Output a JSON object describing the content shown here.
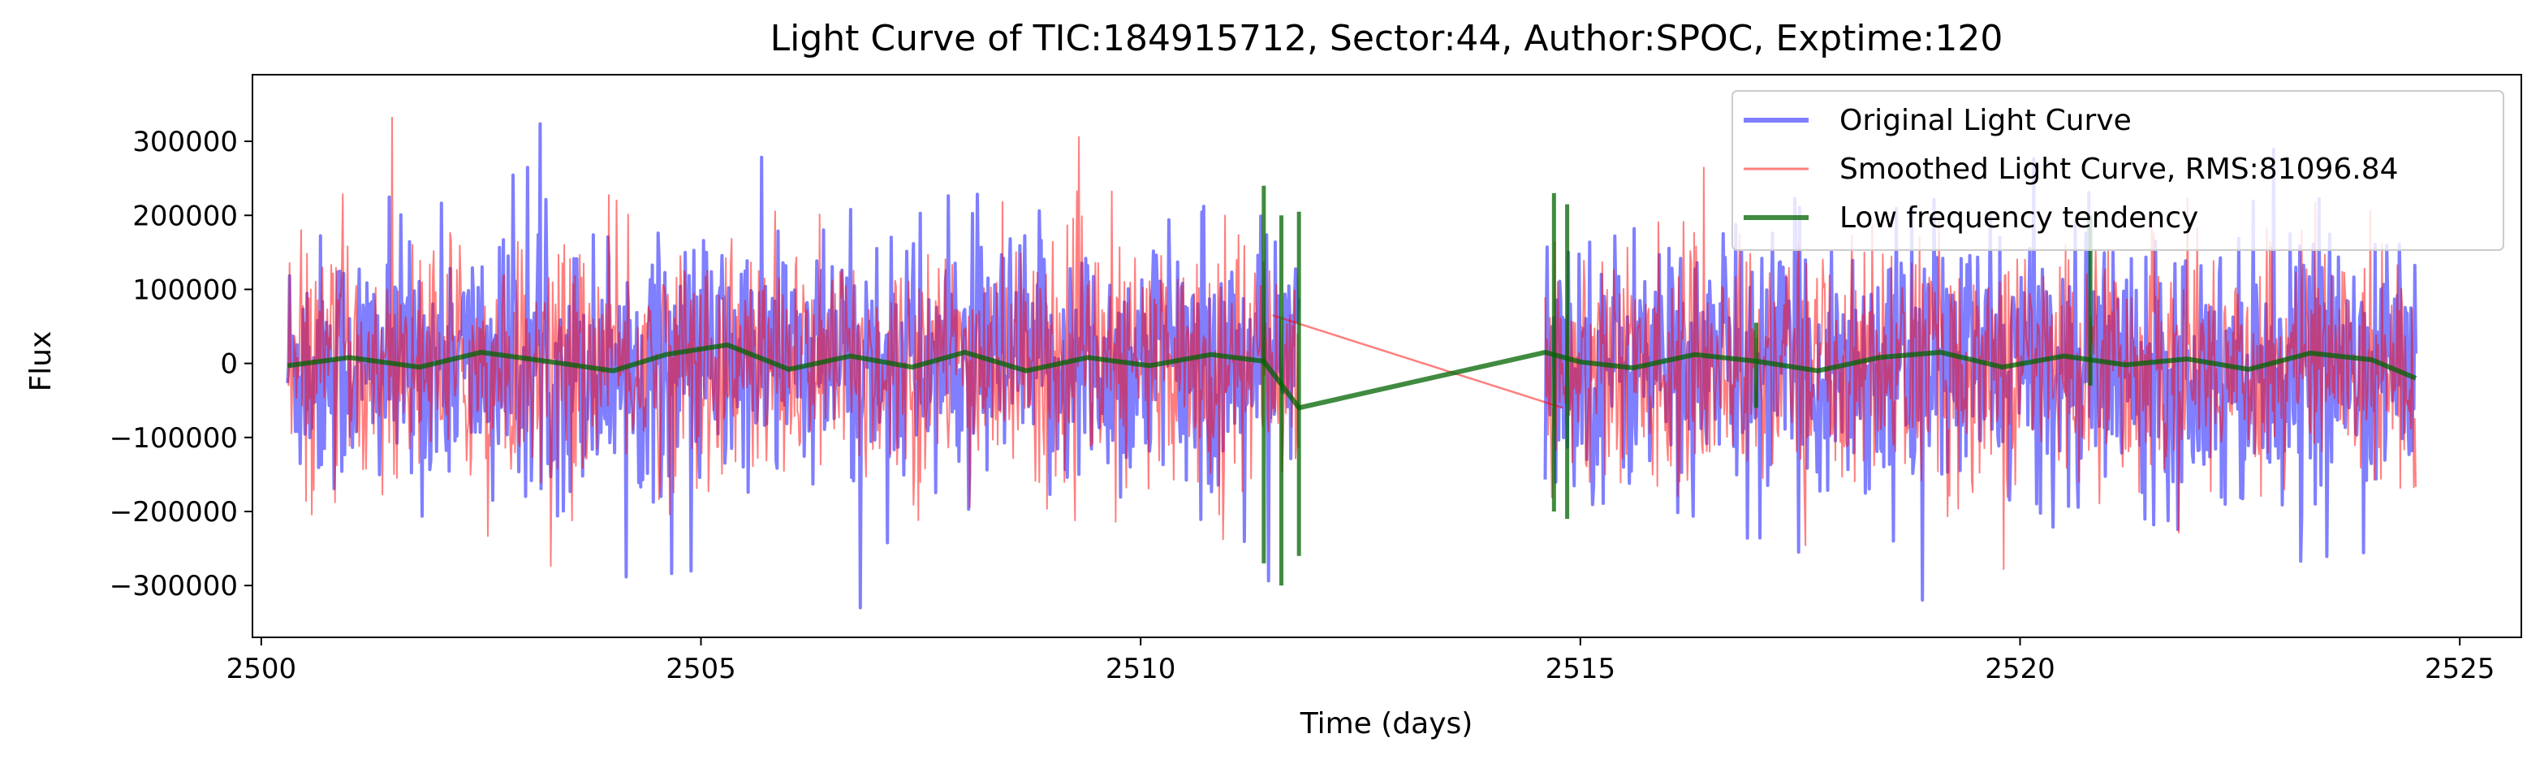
{
  "chart_data": {
    "type": "line",
    "title": "Light Curve of TIC:184915712, Sector:44, Author:SPOC, Exptime:120",
    "xlabel": "Time (days)",
    "ylabel": "Flux",
    "xlim": [
      2499.9,
      2525.7
    ],
    "ylim": [
      -370000,
      390000
    ],
    "x_ticks": [
      2500,
      2505,
      2510,
      2515,
      2520,
      2525
    ],
    "x_tick_labels": [
      "2500",
      "2505",
      "2510",
      "2515",
      "2520",
      "2525"
    ],
    "y_ticks": [
      -300000,
      -200000,
      -100000,
      0,
      100000,
      200000,
      300000
    ],
    "y_tick_labels": [
      "−300000",
      "−200000",
      "−100000",
      "0",
      "100000",
      "200000",
      "300000"
    ],
    "grid": false,
    "legend_position": "top-right",
    "data_segments": [
      {
        "x_start": 2500.3,
        "x_end": 2511.8
      },
      {
        "x_start": 2514.6,
        "x_end": 2524.5
      }
    ],
    "series": [
      {
        "name": "Original Light Curve",
        "color": "#0000ff",
        "opacity": 0.5,
        "approx_envelope": [
          -330000,
          355000
        ]
      },
      {
        "name": "Smoothed Light Curve, RMS:81096.84",
        "color": "#ff0000",
        "opacity": 0.5,
        "approx_envelope": [
          -310000,
          340000
        ],
        "gap_line": {
          "x": [
            2511.5,
            2514.8
          ],
          "y": [
            65000,
            -60000
          ]
        }
      },
      {
        "name": "Low frequency tendency",
        "color": "#006400",
        "opacity": 0.75,
        "x": [
          2500.3,
          2501,
          2501.8,
          2502.5,
          2503.3,
          2504,
          2504.6,
          2505.3,
          2506,
          2506.7,
          2507.4,
          2508,
          2508.7,
          2509.4,
          2510.1,
          2510.8,
          2511.4,
          2511.8,
          2514.6,
          2515,
          2515.6,
          2516.3,
          2517,
          2517.7,
          2518.4,
          2519.1,
          2519.8,
          2520.5,
          2521.2,
          2521.9,
          2522.6,
          2523.3,
          2524,
          2524.5
        ],
        "y": [
          -3000,
          8000,
          -5000,
          15000,
          2000,
          -10000,
          12000,
          25000,
          -8000,
          10000,
          -5000,
          15000,
          -10000,
          8000,
          -3000,
          12000,
          3000,
          -60000,
          15000,
          2000,
          -6000,
          12000,
          3000,
          -10000,
          8000,
          15000,
          -5000,
          10000,
          -2000,
          6000,
          -8000,
          14000,
          5000,
          -20000
        ],
        "spike_x": [
          2511.4,
          2511.6,
          2511.8,
          2514.7,
          2514.85,
          2517.0,
          2520.8
        ],
        "spike_low": [
          -270000,
          -300000,
          -260000,
          -200000,
          -210000,
          -60000,
          -30000
        ],
        "spike_high": [
          240000,
          200000,
          205000,
          230000,
          215000,
          55000,
          200000
        ]
      }
    ]
  }
}
